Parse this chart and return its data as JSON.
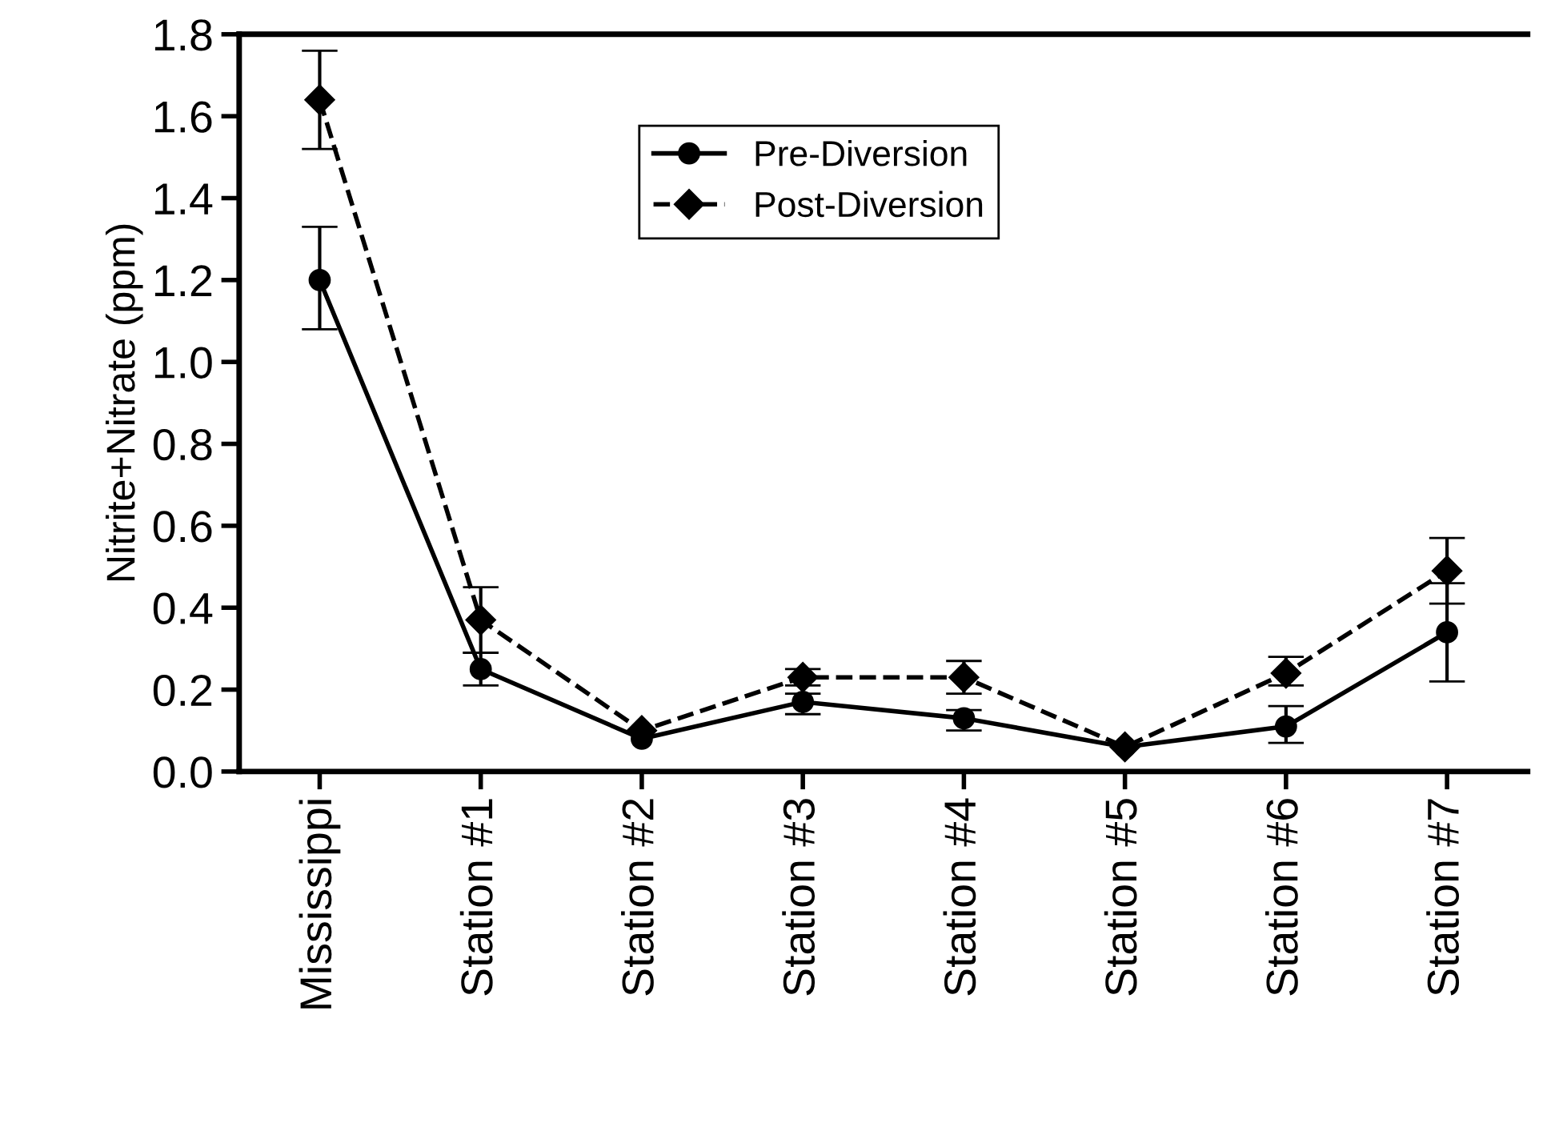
{
  "chart_data": {
    "type": "line",
    "ylabel": "Nitrite+Nitrate (ppm)",
    "categories": [
      "Mississippi",
      "Station #1",
      "Station #2",
      "Station #3",
      "Station #4",
      "Station #5",
      "Station #6",
      "Station #7"
    ],
    "series": [
      {
        "name": "Pre-Diversion",
        "color": "#000000",
        "marker": "circle",
        "line_style": "solid",
        "values": [
          1.2,
          0.25,
          0.08,
          0.17,
          0.13,
          0.06,
          0.11,
          0.34
        ],
        "errors": [
          [
            1.08,
            1.33
          ],
          [
            0.21,
            0.29
          ],
          null,
          [
            0.14,
            0.19
          ],
          [
            0.1,
            0.15
          ],
          null,
          [
            0.07,
            0.16
          ],
          [
            0.22,
            0.46
          ]
        ]
      },
      {
        "name": "Post-Diversion",
        "color": "#000000",
        "marker": "diamond",
        "line_style": "dashed",
        "values": [
          1.64,
          0.37,
          0.1,
          0.23,
          0.23,
          0.06,
          0.24,
          0.49
        ],
        "errors": [
          [
            1.52,
            1.76
          ],
          [
            0.29,
            0.45
          ],
          null,
          [
            0.21,
            0.25
          ],
          [
            0.19,
            0.27
          ],
          null,
          [
            0.21,
            0.28
          ],
          [
            0.41,
            0.57
          ]
        ]
      }
    ],
    "ylim": [
      0,
      1.8
    ],
    "yticks": [
      {
        "value": 0,
        "label": "0.0"
      },
      {
        "value": 0.2,
        "label": "0.2"
      },
      {
        "value": 0.4,
        "label": "0.4"
      },
      {
        "value": 0.6,
        "label": "0.6"
      },
      {
        "value": 0.8,
        "label": "0.8"
      },
      {
        "value": 1.0,
        "label": "1.0"
      },
      {
        "value": 1.2,
        "label": "1.2"
      },
      {
        "value": 1.4,
        "label": "1.4"
      },
      {
        "value": 1.6,
        "label": "1.6"
      },
      {
        "value": 1.8,
        "label": "1.8"
      }
    ],
    "grid": false,
    "legend": "top"
  }
}
